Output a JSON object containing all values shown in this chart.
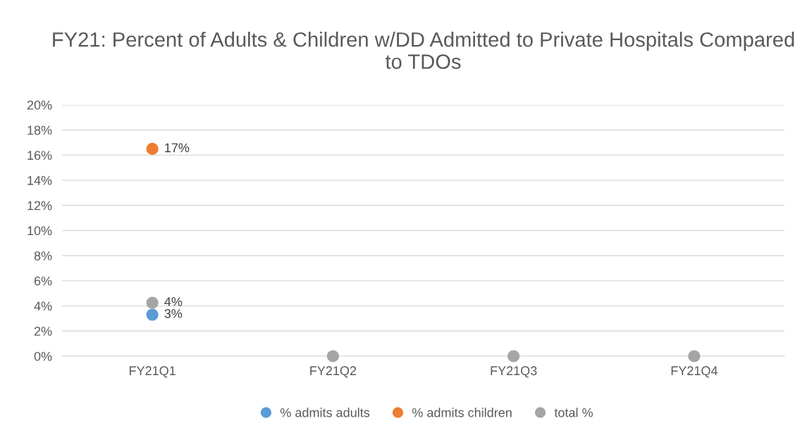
{
  "chart_data": {
    "type": "scatter",
    "title": "FY21: Percent of Adults & Children w/DD Admitted to Private Hospitals Compared to TDOs",
    "categories": [
      "FY21Q1",
      "FY21Q2",
      "FY21Q3",
      "FY21Q4"
    ],
    "series": [
      {
        "name": "% admits adults",
        "color": "#5b9bd5",
        "values": [
          3.3,
          null,
          null,
          null
        ],
        "value_labels": [
          "3%",
          null,
          null,
          null
        ]
      },
      {
        "name": "% admits children",
        "color": "#ed7d31",
        "values": [
          16.5,
          null,
          null,
          null
        ],
        "value_labels": [
          "17%",
          null,
          null,
          null
        ]
      },
      {
        "name": "total %",
        "color": "#a5a5a5",
        "values": [
          4.25,
          0,
          0,
          0
        ],
        "value_labels": [
          "4%",
          null,
          null,
          null
        ]
      }
    ],
    "ylim": [
      0,
      20
    ],
    "yticks": [
      {
        "value": 0,
        "label": "0%"
      },
      {
        "value": 2,
        "label": "2%"
      },
      {
        "value": 4,
        "label": "4%"
      },
      {
        "value": 6,
        "label": "6%"
      },
      {
        "value": 8,
        "label": "8%"
      },
      {
        "value": 10,
        "label": "10%"
      },
      {
        "value": 12,
        "label": "12%"
      },
      {
        "value": 14,
        "label": "14%"
      },
      {
        "value": 16,
        "label": "16%"
      },
      {
        "value": 18,
        "label": "18%"
      },
      {
        "value": 20,
        "label": "20%"
      }
    ],
    "grid": "y",
    "legend": "bottom",
    "marker": "circle"
  }
}
